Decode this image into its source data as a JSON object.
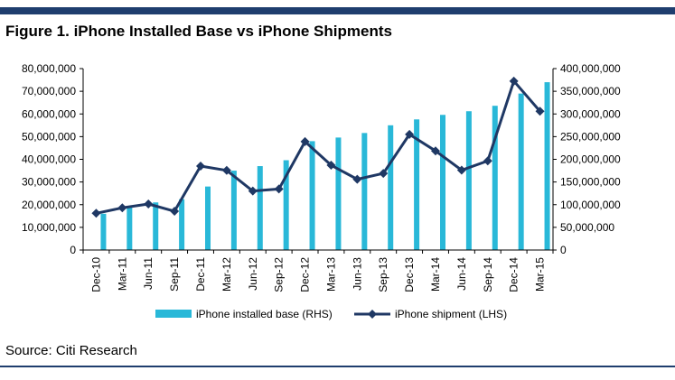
{
  "figure": {
    "title": "Figure 1. iPhone Installed Base vs iPhone Shipments",
    "source": "Source: Citi Research",
    "rule_color": "#1f3e6e"
  },
  "chart_data": {
    "type": "bar",
    "categories": [
      "Dec-10",
      "Mar-11",
      "Jun-11",
      "Sep-11",
      "Dec-11",
      "Mar-12",
      "Jun-12",
      "Sep-12",
      "Dec-12",
      "Mar-13",
      "Jun-13",
      "Sep-13",
      "Dec-13",
      "Mar-14",
      "Jun-14",
      "Sep-14",
      "Dec-14",
      "Mar-15"
    ],
    "series": [
      {
        "name": "iPhone installed base (RHS)",
        "type": "bar",
        "axis": "right",
        "color": "#29b8d8",
        "values": [
          80000000,
          95000000,
          105000000,
          112000000,
          140000000,
          175000000,
          185000000,
          198000000,
          240000000,
          248000000,
          258000000,
          275000000,
          288000000,
          298000000,
          306000000,
          318000000,
          345000000,
          370000000
        ]
      },
      {
        "name": "iPhone shipment (LHS)",
        "type": "line",
        "axis": "left",
        "color": "#1f3864",
        "values": [
          16200000,
          18600000,
          20300000,
          17100000,
          37000000,
          35100000,
          26000000,
          26900000,
          47800000,
          37400000,
          31200000,
          33800000,
          51000000,
          43700000,
          35200000,
          39300000,
          74500000,
          61200000
        ]
      }
    ],
    "left_axis": {
      "ylim": [
        0,
        80000000
      ],
      "ticks": [
        "0",
        "10,000,000",
        "20,000,000",
        "30,000,000",
        "40,000,000",
        "50,000,000",
        "60,000,000",
        "70,000,000",
        "80,000,000"
      ]
    },
    "right_axis": {
      "ylim": [
        0,
        400000000
      ],
      "ticks": [
        "0",
        "50,000,000",
        "100,000,000",
        "150,000,000",
        "200,000,000",
        "250,000,000",
        "300,000,000",
        "350,000,000",
        "400,000,000"
      ]
    },
    "grid": false,
    "legend_position": "bottom"
  }
}
